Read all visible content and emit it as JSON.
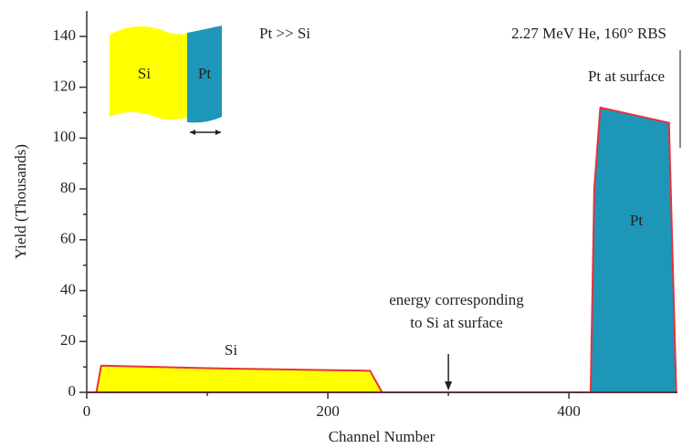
{
  "chart_data": {
    "type": "area",
    "x_label": "Channel Number",
    "y_label": "Yield (Thousands)",
    "xlim": [
      0,
      490
    ],
    "ylim": [
      0,
      150
    ],
    "xticks": [
      0,
      200,
      400
    ],
    "yticks": [
      0,
      20,
      40,
      60,
      80,
      100,
      120,
      140
    ],
    "x_minor_ticks": [
      100,
      300
    ],
    "y_minor_ticks": [
      10,
      30,
      50,
      70,
      90,
      110,
      130
    ],
    "grid": false,
    "outline_color": "#e8323c",
    "series": [
      {
        "name": "Si",
        "color": "#ffff00",
        "x": [
          8,
          12,
          100,
          235,
          245
        ],
        "values": [
          0,
          10.5,
          9.5,
          8.5,
          0
        ]
      },
      {
        "name": "Pt",
        "color": "#1e96b8",
        "x": [
          418,
          421,
          426,
          483,
          489
        ],
        "values": [
          0,
          80,
          112,
          106,
          0
        ]
      }
    ],
    "annotations": {
      "ratio": "Pt >> Si",
      "conditions": "2.27 MeV He, 160° RBS",
      "pt_surface": "Pt at surface",
      "si_surface": {
        "lines": [
          "energy corresponding",
          "to Si at surface"
        ],
        "x": 300
      }
    },
    "inset": {
      "left": "Si",
      "right": "Pt"
    }
  }
}
